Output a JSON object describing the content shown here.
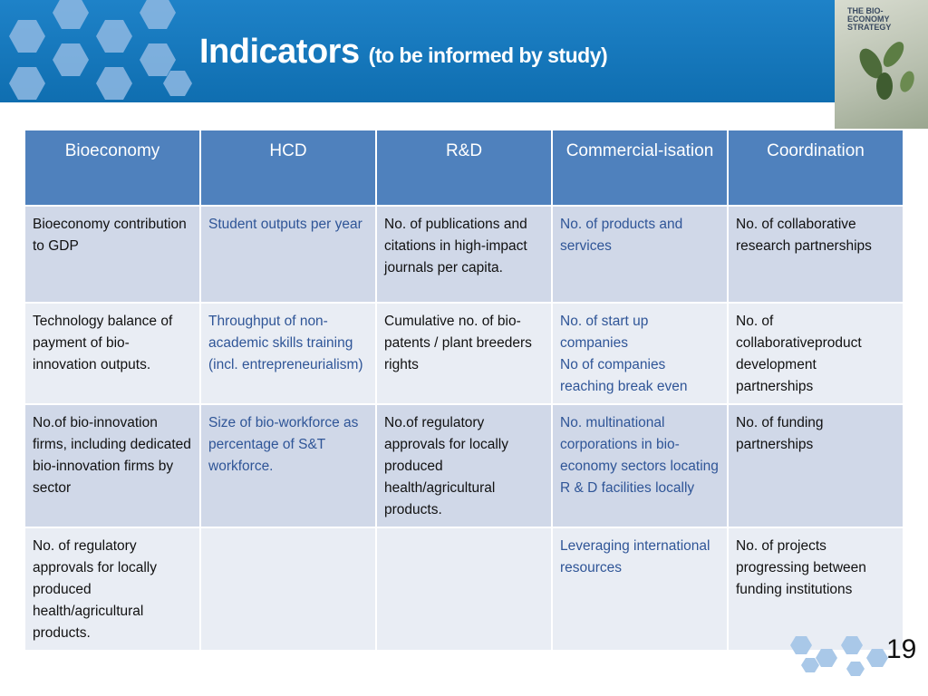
{
  "header": {
    "title": "Indicators",
    "subtitle": "(to be informed by study)",
    "cover_text": "THE BIO-ECONOMY STRATEGY"
  },
  "table": {
    "columns": [
      "Bioeconomy",
      "HCD",
      "R&D",
      "Commercial-isation",
      "Coordination"
    ],
    "rows": [
      [
        "Bioeconomy contribution to GDP",
        "Student outputs per year",
        "No. of publications and citations in high-impact journals per capita.",
        "No. of products and services",
        "No. of collaborative research partnerships"
      ],
      [
        "Technology balance of payment of bio-innovation outputs.",
        "Throughput of non-academic skills training (incl. entrepreneurialism)",
        "Cumulative no. of bio-patents / plant breeders rights",
        "No. of start up companies\nNo of companies reaching break even",
        "No. of collaborativeproduct development partnerships"
      ],
      [
        "No.of bio-innovation firms, including dedicated bio-innovation firms by sector",
        "Size of bio-workforce as percentage of S&T workforce.",
        "No.of regulatory approvals for locally produced health/agricultural products.",
        "No. multinational corporations in bio-economy sectors locating R & D facilities locally",
        "No. of funding partnerships"
      ],
      [
        "No. of regulatory approvals for locally produced health/agricultural products.",
        null,
        null,
        "Leveraging international resources",
        "No. of projects progressing between funding institutions"
      ]
    ]
  },
  "footer": {
    "page_number": "19"
  }
}
